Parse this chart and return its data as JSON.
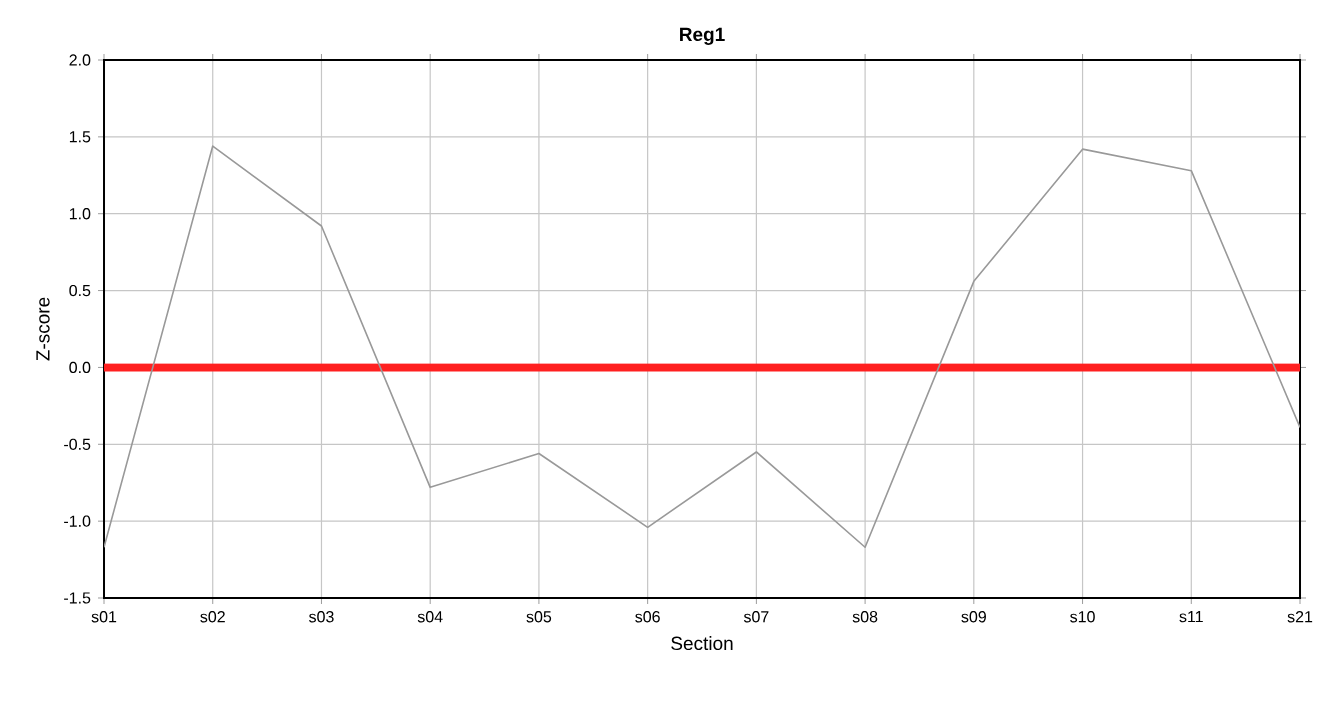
{
  "chart_data": {
    "type": "line",
    "title": "Reg1",
    "xlabel": "Section",
    "ylabel": "Z-score",
    "categories": [
      "s01",
      "s02",
      "s03",
      "s04",
      "s05",
      "s06",
      "s07",
      "s08",
      "s09",
      "s10",
      "s11",
      "s21"
    ],
    "series": [
      {
        "color": "#999999",
        "values": [
          -1.17,
          1.44,
          0.92,
          -0.78,
          -0.56,
          -1.04,
          -0.55,
          -1.17,
          0.56,
          1.42,
          1.28,
          -0.39
        ]
      }
    ],
    "ylim": [
      -1.5,
      2.0
    ],
    "yticks": [
      {
        "value": -1.5,
        "label": "-1.5"
      },
      {
        "value": -1.0,
        "label": "-1.0"
      },
      {
        "value": -0.5,
        "label": "-0.5"
      },
      {
        "value": 0.0,
        "label": "0.0"
      },
      {
        "value": 0.5,
        "label": "0.5"
      },
      {
        "value": 1.0,
        "label": "1.0"
      },
      {
        "value": 1.5,
        "label": "1.5"
      },
      {
        "value": 2.0,
        "label": "2.0"
      }
    ],
    "grid": true,
    "marker": "none",
    "line_style": "solid",
    "ref_lines": [
      {
        "axis": "y",
        "value": 0,
        "color": "#ff2020"
      }
    ]
  }
}
